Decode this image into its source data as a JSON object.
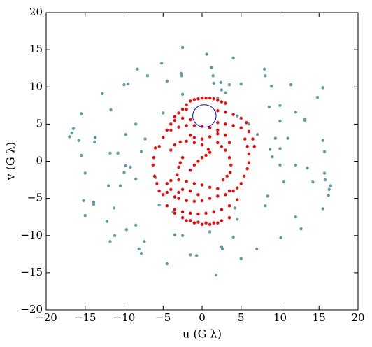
{
  "chart_data": {
    "type": "scatter",
    "xlabel": "u (G λ)",
    "ylabel": "v (G λ)",
    "xlim": [
      -20,
      20
    ],
    "ylim": [
      -20,
      20
    ],
    "xticks": [
      {
        "value": -20,
        "label": "−20"
      },
      {
        "value": -15,
        "label": "−15"
      },
      {
        "value": -10,
        "label": "−10"
      },
      {
        "value": -5,
        "label": "−5"
      },
      0,
      5,
      10,
      15,
      20
    ],
    "yticks": [
      {
        "value": -20,
        "label": "−20"
      },
      {
        "value": -15,
        "label": "−15"
      },
      {
        "value": -10,
        "label": "−10"
      },
      {
        "value": -5,
        "label": "−5"
      },
      0,
      5,
      10,
      15,
      20
    ],
    "series": [
      {
        "color": "#5f9ea0",
        "x": [
          -2.5,
          0.6,
          4,
          -5.2,
          -7,
          -8.3,
          -2.7,
          -2.6,
          1.2,
          1.4,
          -10,
          -9.5,
          -12.8,
          -4.5,
          1.5,
          2.4,
          3.5,
          5,
          8,
          8.1,
          8.9,
          11.4,
          2.5,
          3,
          -2.5,
          2,
          -15.5,
          -11.7,
          -8.5,
          -5,
          4.5,
          8.6,
          10,
          14.8,
          15.5,
          12,
          13.2,
          13.2,
          10,
          6,
          -16.5,
          -16.7,
          -17,
          -13.7,
          -13.8,
          -15.8,
          -9.8,
          -7.3,
          7.1,
          9.4,
          11,
          8.7,
          10,
          15.5,
          -15.5,
          -11.8,
          -10.8,
          -7.8,
          -9.8,
          -10,
          -9.2,
          -15,
          9,
          10,
          12,
          15.7,
          13.5,
          15.7,
          -12,
          -10.5,
          -8.5,
          -6,
          15.8,
          16.5,
          16.3,
          16.2,
          14.2,
          10.5,
          8.4,
          8.1,
          -15.2,
          -13.9,
          -13.9,
          -11.3,
          -15,
          -12.2,
          -8.5,
          -5.5,
          -3.7,
          4.2,
          4.5,
          12,
          15.5,
          12.7,
          -9.7,
          -11.2,
          -11.8,
          -7.4,
          -3.5,
          -2.5,
          1,
          4,
          10.1,
          -8.1,
          -7.8,
          2.5,
          2.6,
          7,
          -1.5,
          -0.7,
          5,
          -4.5,
          1.8
        ],
        "y": [
          15.3,
          14.4,
          13.9,
          13.2,
          11.5,
          12.4,
          11.8,
          11.5,
          12.6,
          11.5,
          10.3,
          10.4,
          9.1,
          10.8,
          10.5,
          10.6,
          10.3,
          10.4,
          12.4,
          11.5,
          10.1,
          10.3,
          9.6,
          9.2,
          9,
          8.5,
          6.4,
          6.9,
          5,
          6.5,
          6.1,
          7.3,
          7.5,
          8.6,
          9.9,
          6.6,
          5.7,
          5.5,
          5.4,
          5,
          4.4,
          3.8,
          3.3,
          3.2,
          2.6,
          2.8,
          3.6,
          3,
          3.6,
          3.1,
          3.1,
          1.6,
          1.7,
          2.8,
          0.8,
          1.1,
          1.1,
          1.3,
          -0.6,
          -1.5,
          -0.8,
          -1.6,
          0.6,
          -0.5,
          -0.5,
          1.3,
          -0.9,
          -1.6,
          -3.3,
          -3.3,
          -2.4,
          -2.2,
          -2.5,
          -3.3,
          -3.8,
          -4.6,
          -2.8,
          -2.8,
          -4.7,
          -6,
          -5.3,
          -5.5,
          -5.8,
          -6.3,
          -7.3,
          -8.1,
          -8.6,
          -5.9,
          -6.8,
          -6.3,
          -7.8,
          -7.5,
          -6.4,
          -9.1,
          -9.2,
          -10,
          -10.8,
          -10.8,
          -9.9,
          -10,
          -9.5,
          -10.2,
          -10.3,
          -11.8,
          -12.4,
          -11.5,
          -11.8,
          -11.8,
          -12.6,
          -12.7,
          -13.1,
          -13.8,
          -15.3
        ]
      },
      {
        "color": "#ff0000",
        "x": [
          -2.5,
          -2,
          -1.5,
          -1,
          -0.5,
          0,
          0.5,
          1,
          1.5,
          2,
          2.5,
          3,
          -3.5,
          -3,
          -2,
          2,
          3,
          4,
          5,
          5.7,
          -4.5,
          -4,
          -3.5,
          -2.5,
          -1.5,
          2,
          3,
          4,
          5,
          6,
          6.5,
          6.7,
          -5.5,
          -5,
          -4,
          -3,
          -2,
          -1,
          0,
          1,
          2,
          3,
          3.5,
          -4,
          -3.5,
          -2.8,
          -2,
          -1,
          0,
          0.8,
          -2.5,
          -2.8,
          -3,
          -3.2,
          2,
          2.5,
          3,
          3.5,
          3.7,
          3.6,
          3.2,
          2.7,
          -0.5,
          0,
          0.5,
          1,
          -1,
          -1.5,
          -6,
          -6.2,
          -6.3,
          -6.1,
          -5.8,
          -5.5,
          -5,
          -4.5,
          -4,
          5.5,
          5.8,
          6,
          6,
          5.8,
          5.4,
          5,
          4.5,
          4,
          -4.5,
          -4,
          -3,
          -2,
          -1,
          0,
          1,
          2,
          -3.5,
          -3,
          -2,
          -1,
          0,
          1,
          2,
          3,
          3.5,
          -3,
          -2.5,
          -1.5,
          -0.5,
          -4.5,
          -3.5,
          -2.5,
          -1.5,
          -0.5,
          0.5,
          1.5,
          2.5,
          3.5,
          4.5,
          -3.5,
          -2.5,
          -1.5,
          -0.5,
          0.5,
          1.5,
          2.5,
          3.5,
          -2,
          -1,
          0,
          1,
          2,
          -1.5,
          -1,
          0,
          1,
          2
        ],
        "y": [
          7,
          7.6,
          8.1,
          8.3,
          8.4,
          8.5,
          8.5,
          8.5,
          8.4,
          8.2,
          8,
          7.8,
          6,
          6.5,
          7,
          6.8,
          6.6,
          6.3,
          5.8,
          5.2,
          4.2,
          5,
          5.5,
          5.8,
          5.6,
          5.2,
          5,
          4.8,
          4.5,
          4,
          3,
          2,
          2,
          3.2,
          4.2,
          4.6,
          4.8,
          4.8,
          4.7,
          4.5,
          4.2,
          3.5,
          2.5,
          1.5,
          2.2,
          2.6,
          2.7,
          2.5,
          2.2,
          1.6,
          0.5,
          -0.2,
          -0.8,
          -1.8,
          2.5,
          2,
          1.5,
          0.5,
          -0.5,
          -1.5,
          -2,
          -2.5,
          0,
          0.5,
          0.8,
          1.2,
          -0.5,
          -1.2,
          1.8,
          0.5,
          -0.5,
          -2,
          -3,
          -4,
          -4.5,
          -4.2,
          -3.8,
          3,
          2,
          1,
          -0.2,
          -1,
          -2,
          -3,
          -3.6,
          -4,
          -3,
          -2.6,
          -2.5,
          -2.7,
          -3,
          -3.2,
          -3.5,
          -3.7,
          -4.8,
          -5,
          -5.3,
          -5.4,
          -5.3,
          -5,
          -4.7,
          -4.5,
          -4,
          -4.2,
          -3.8,
          -4,
          -4.5,
          -6,
          -6.5,
          -6.8,
          -7,
          -7.1,
          -7,
          -6.8,
          -6.5,
          -6,
          -5.2,
          -7,
          -7.6,
          -8,
          -8.2,
          -8.3,
          -8.3,
          -8,
          -7.6,
          -8,
          -8.3,
          -8.5,
          -8.5,
          -8.3,
          3.5,
          3.2,
          3,
          3.3,
          3.7
        ]
      }
    ],
    "circle": {
      "center": [
        0.3,
        6.1
      ],
      "radius": 1.5,
      "color": "#0000ff"
    }
  }
}
